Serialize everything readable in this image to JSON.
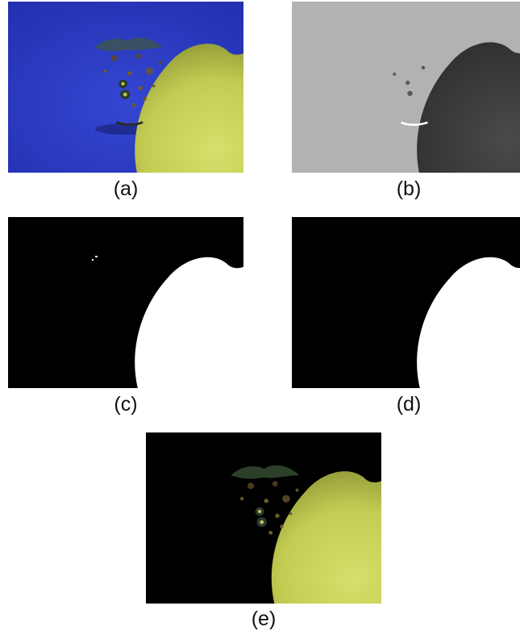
{
  "figure": {
    "panels": [
      {
        "id": "a",
        "label": "(a)",
        "content": "original-pear-photo"
      },
      {
        "id": "b",
        "label": "(b)",
        "content": "grayscale-channel"
      },
      {
        "id": "c",
        "label": "(c)",
        "content": "binary-mask-raw"
      },
      {
        "id": "d",
        "label": "(d)",
        "content": "binary-mask-cleaned"
      },
      {
        "id": "e",
        "label": "(e)",
        "content": "segmented-pear"
      }
    ]
  },
  "colors": {
    "photo_background": "#2b3ac4",
    "gray_background": "#b2b2b2",
    "mask_background": "#000000",
    "mask_foreground": "#ffffff",
    "fruit_skin": "#c8d256",
    "lesion": "#6e5a2a"
  }
}
